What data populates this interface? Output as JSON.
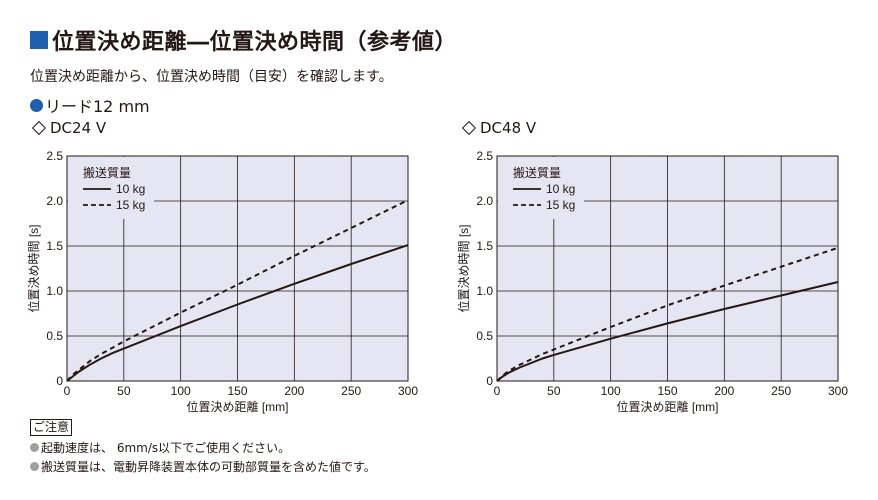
{
  "header": {
    "title": "位置決め距離―位置決め時間（参考値）",
    "description": "位置決め距離から、位置決め時間（目安）を確認します。"
  },
  "section": {
    "label": "リード12 mm"
  },
  "notes": {
    "heading": "ご注意",
    "items": [
      "起動速度は、 6mm/s以下でご使用ください。",
      "搬送質量は、電動昇降装置本体の可動部質量を含めた値です。"
    ]
  },
  "colors": {
    "accent": "#1f5fae",
    "plot_bg": "#e6e6f2",
    "bullet_gray": "#a0a0a0"
  },
  "chart_data": [
    {
      "type": "line",
      "title": "DC24 V",
      "xlabel": "位置決め距離 [mm]",
      "ylabel": "位置決め時間 [s]",
      "xlim": [
        0,
        300
      ],
      "ylim": [
        0,
        2.5
      ],
      "xticks": [
        0,
        50,
        100,
        150,
        200,
        250,
        300
      ],
      "yticks": [
        0,
        0.5,
        1.0,
        1.5,
        2.0,
        2.5
      ],
      "grid": true,
      "legend": {
        "title": "搬送質量",
        "position": "top-left"
      },
      "x": [
        0,
        5,
        10,
        20,
        30,
        40,
        50,
        100,
        150,
        200,
        250,
        300
      ],
      "series": [
        {
          "name": "10 kg",
          "style": "solid",
          "values": [
            0,
            0.05,
            0.1,
            0.18,
            0.25,
            0.31,
            0.36,
            0.61,
            0.85,
            1.08,
            1.3,
            1.51
          ]
        },
        {
          "name": "15 kg",
          "style": "dashed",
          "values": [
            0,
            0.07,
            0.12,
            0.22,
            0.3,
            0.37,
            0.44,
            0.76,
            1.07,
            1.39,
            1.7,
            2.01
          ]
        }
      ]
    },
    {
      "type": "line",
      "title": "DC48 V",
      "xlabel": "位置決め距離 [mm]",
      "ylabel": "位置決め時間 [s]",
      "xlim": [
        0,
        300
      ],
      "ylim": [
        0,
        2.5
      ],
      "xticks": [
        0,
        50,
        100,
        150,
        200,
        250,
        300
      ],
      "yticks": [
        0,
        0.5,
        1.0,
        1.5,
        2.0,
        2.5
      ],
      "grid": true,
      "legend": {
        "title": "搬送質量",
        "position": "top-left"
      },
      "x": [
        0,
        5,
        10,
        20,
        30,
        40,
        50,
        100,
        150,
        200,
        250,
        300
      ],
      "series": [
        {
          "name": "10 kg",
          "style": "solid",
          "values": [
            0,
            0.05,
            0.09,
            0.15,
            0.2,
            0.25,
            0.29,
            0.47,
            0.64,
            0.8,
            0.95,
            1.1
          ]
        },
        {
          "name": "15 kg",
          "style": "dashed",
          "values": [
            0,
            0.06,
            0.11,
            0.18,
            0.24,
            0.3,
            0.35,
            0.6,
            0.84,
            1.06,
            1.27,
            1.48
          ]
        }
      ]
    }
  ]
}
